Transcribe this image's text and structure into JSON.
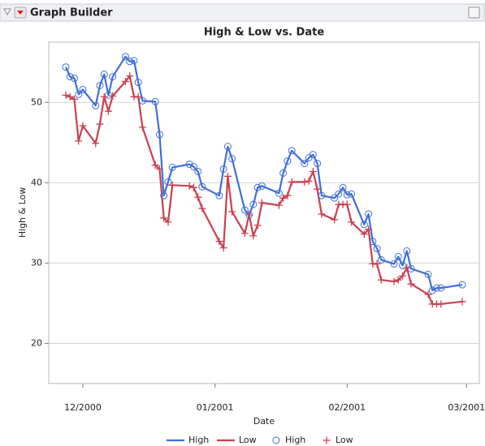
{
  "window": {
    "title": "Graph Builder"
  },
  "chart_data": {
    "type": "line",
    "title": "High & Low vs. Date",
    "xlabel": "Date",
    "ylabel": "High & Low",
    "x": [
      "2000-11-27",
      "2000-11-28",
      "2000-11-29",
      "2000-11-30",
      "2000-12-01",
      "2000-12-04",
      "2000-12-05",
      "2000-12-06",
      "2000-12-07",
      "2000-12-08",
      "2000-12-11",
      "2000-12-12",
      "2000-12-13",
      "2000-12-14",
      "2000-12-15",
      "2000-12-18",
      "2000-12-19",
      "2000-12-20",
      "2000-12-21",
      "2000-12-22",
      "2000-12-26",
      "2000-12-27",
      "2000-12-28",
      "2000-12-29",
      "2001-01-02",
      "2001-01-03",
      "2001-01-04",
      "2001-01-05",
      "2001-01-08",
      "2001-01-09",
      "2001-01-10",
      "2001-01-11",
      "2001-01-12",
      "2001-01-16",
      "2001-01-17",
      "2001-01-18",
      "2001-01-19",
      "2001-01-22",
      "2001-01-23",
      "2001-01-24",
      "2001-01-25",
      "2001-01-26",
      "2001-01-29",
      "2001-01-30",
      "2001-01-31",
      "2001-02-01",
      "2001-02-02",
      "2001-02-05",
      "2001-02-06",
      "2001-02-07",
      "2001-02-08",
      "2001-02-09",
      "2001-02-12",
      "2001-02-13",
      "2001-02-14",
      "2001-02-15",
      "2001-02-16",
      "2001-02-20",
      "2001-02-21",
      "2001-02-22",
      "2001-02-23",
      "2001-02-28"
    ],
    "series": [
      {
        "name": "High",
        "color": "#3f6fd6",
        "marker": "circle",
        "values": [
          54.4,
          53.2,
          53.0,
          51.0,
          51.6,
          49.6,
          52.1,
          53.5,
          50.9,
          53.2,
          55.7,
          55.1,
          55.2,
          52.5,
          50.2,
          50.1,
          46.0,
          38.4,
          40.1,
          41.9,
          42.3,
          42.0,
          41.4,
          39.5,
          38.4,
          41.7,
          44.5,
          43.0,
          36.6,
          36.0,
          37.3,
          39.4,
          39.6,
          38.7,
          41.2,
          42.7,
          44.0,
          42.4,
          43.1,
          43.5,
          42.4,
          38.4,
          38.1,
          38.6,
          39.4,
          38.5,
          38.6,
          34.8,
          36.1,
          32.7,
          31.8,
          30.4,
          29.9,
          30.8,
          29.7,
          31.5,
          29.3,
          28.6,
          26.6,
          26.9,
          26.9,
          27.3
        ]
      },
      {
        "name": "Low",
        "color": "#c8414f",
        "marker": "plus",
        "values": [
          50.9,
          50.7,
          50.4,
          45.2,
          47.1,
          44.9,
          47.3,
          50.7,
          48.9,
          50.8,
          52.6,
          53.3,
          50.7,
          50.7,
          46.9,
          42.2,
          41.7,
          35.6,
          35.1,
          39.7,
          39.6,
          39.4,
          38.2,
          36.8,
          32.7,
          31.9,
          40.8,
          36.4,
          33.7,
          36.0,
          33.4,
          34.7,
          37.5,
          37.2,
          38.1,
          38.4,
          40.1,
          40.1,
          40.2,
          41.4,
          39.2,
          36.1,
          35.4,
          37.3,
          37.3,
          37.3,
          35.1,
          33.6,
          34.2,
          29.9,
          29.9,
          27.9,
          27.7,
          27.9,
          28.4,
          29.4,
          27.4,
          26.1,
          24.9,
          24.9,
          24.9,
          25.2
        ]
      }
    ],
    "xlim": [
      "2000-11-23",
      "2001-03-04"
    ],
    "xticks": [
      {
        "value": "2000-12-01",
        "label": "12/2000"
      },
      {
        "value": "2001-01-01",
        "label": "01/2001"
      },
      {
        "value": "2001-02-01",
        "label": "02/2001"
      },
      {
        "value": "2001-03-01",
        "label": "03/2001"
      }
    ],
    "ylim": [
      15,
      57.5
    ],
    "yticks": [
      20,
      30,
      40,
      50
    ],
    "grid": true,
    "legend": "bottom"
  }
}
